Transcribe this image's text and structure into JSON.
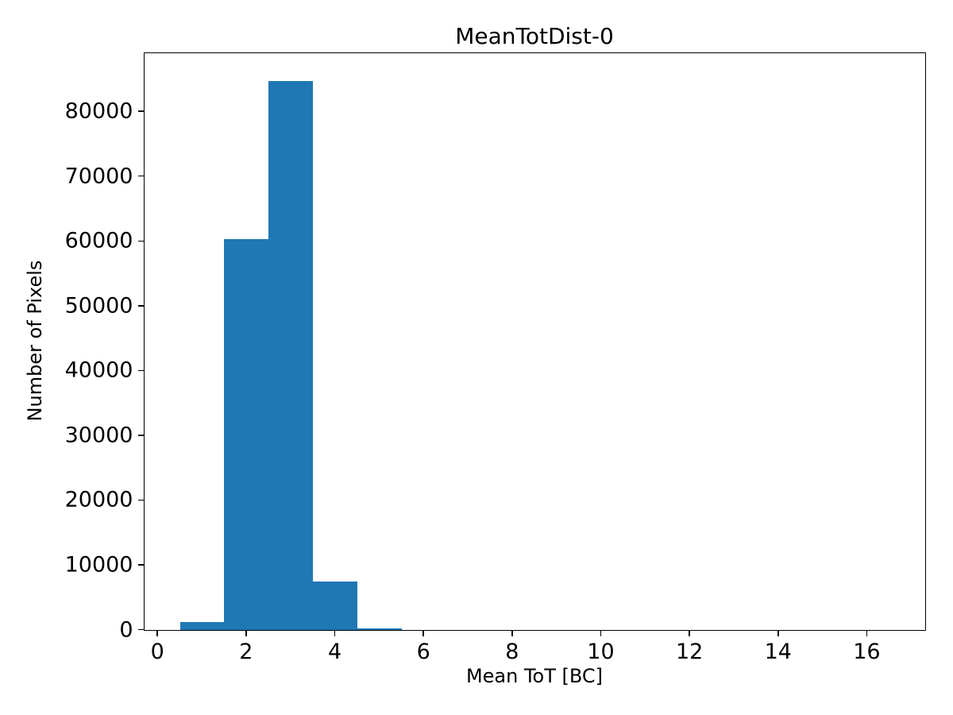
{
  "chart_data": {
    "type": "bar",
    "subtype": "histogram",
    "title": "MeanTotDist-0",
    "xlabel": "Mean ToT [BC]",
    "ylabel": "Number of Pixels",
    "bar_color": "#1f77b4",
    "text_color": "#000000",
    "background_color": "#ffffff",
    "grid": false,
    "legend": false,
    "xlim": [
      -0.3,
      17.3
    ],
    "ylim": [
      0,
      89040
    ],
    "xticks": [
      0,
      2,
      4,
      6,
      8,
      10,
      12,
      14,
      16
    ],
    "yticks": [
      0,
      10000,
      20000,
      30000,
      40000,
      50000,
      60000,
      70000,
      80000
    ],
    "bin_edges": [
      0.5,
      1.5,
      2.5,
      3.5,
      4.5,
      5.5,
      6.5,
      7.5,
      8.5,
      9.5,
      10.5,
      11.5,
      12.5,
      13.5,
      14.5,
      15.5,
      16.5
    ],
    "counts": [
      1200,
      60400,
      84800,
      7450,
      200,
      0,
      0,
      0,
      0,
      0,
      0,
      0,
      0,
      0,
      0,
      0
    ]
  }
}
